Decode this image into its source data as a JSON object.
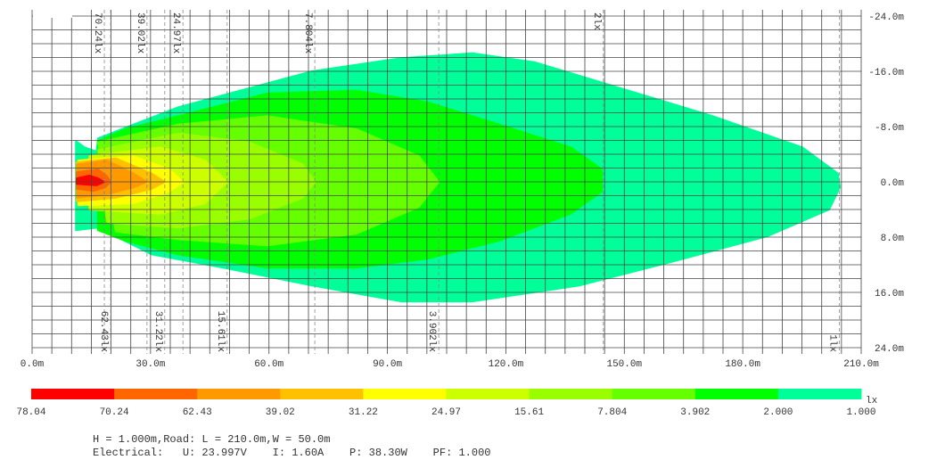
{
  "chart_data": {
    "type": "heatmap",
    "subtype": "isolux-contour",
    "x_unit": "m",
    "y_unit": "m",
    "xlim": [
      0,
      210
    ],
    "ylim": [
      -24,
      24
    ],
    "x_grid_step": 5,
    "y_grid_step": 2,
    "grid": true,
    "x_ticks": [
      {
        "value": 0,
        "label": "0.0m"
      },
      {
        "value": 30,
        "label": "30.0m"
      },
      {
        "value": 60,
        "label": "60.0m"
      },
      {
        "value": 90,
        "label": "90.0m"
      },
      {
        "value": 120,
        "label": "120.0m"
      },
      {
        "value": 150,
        "label": "150.0m"
      },
      {
        "value": 180,
        "label": "180.0m"
      },
      {
        "value": 210,
        "label": "210.0m"
      }
    ],
    "y_ticks": [
      {
        "value": -24,
        "label": "-24.0m"
      },
      {
        "value": -16,
        "label": "-16.0m"
      },
      {
        "value": -8,
        "label": "-8.0m"
      },
      {
        "value": 0,
        "label": "0.0m"
      },
      {
        "value": 8,
        "label": "8.0m"
      },
      {
        "value": 16,
        "label": "16.0m"
      },
      {
        "value": 24,
        "label": "24.0m"
      }
    ],
    "contour_markers_top": [
      {
        "x": 18.3,
        "label": "70.24lx"
      },
      {
        "x": 29.1,
        "label": "39.02lx"
      },
      {
        "x": 38.2,
        "label": "24.97lx"
      },
      {
        "x": 71.6,
        "label": "7.804lx"
      },
      {
        "x": 144.7,
        "label": "2lx"
      }
    ],
    "contour_markers_bottom": [
      {
        "x": 19.9,
        "label": "62.43lx"
      },
      {
        "x": 33.6,
        "label": "31.22lx"
      },
      {
        "x": 49.4,
        "label": "15.61lx"
      },
      {
        "x": 103.0,
        "label": "3.902lx"
      },
      {
        "x": 204.5,
        "label": "1lx"
      }
    ],
    "contours": [
      {
        "level": 1.0,
        "color": "#00ff99",
        "points": [
          [
            11.1,
            -5.9
          ],
          [
            13.3,
            -5.0
          ],
          [
            16.3,
            -4.4
          ],
          [
            16.7,
            -6.3
          ],
          [
            37.0,
            -10.8
          ],
          [
            70.9,
            -16.0
          ],
          [
            93.5,
            -17.9
          ],
          [
            111.5,
            -18.6
          ],
          [
            127.4,
            -17.3
          ],
          [
            149.9,
            -13.4
          ],
          [
            172.5,
            -9.5
          ],
          [
            195.1,
            -5.0
          ],
          [
            204.1,
            -1.2
          ],
          [
            204.6,
            0.8
          ],
          [
            201.9,
            4.0
          ],
          [
            186.1,
            7.9
          ],
          [
            161.2,
            11.7
          ],
          [
            138.6,
            15.0
          ],
          [
            111.5,
            17.3
          ],
          [
            93.5,
            17.3
          ],
          [
            70.9,
            15.0
          ],
          [
            48.3,
            12.4
          ],
          [
            30.3,
            10.5
          ],
          [
            21.2,
            7.9
          ],
          [
            16.7,
            6.6
          ],
          [
            11.1,
            7.0
          ]
        ]
      },
      {
        "level": 2.0,
        "color": "#00ff00",
        "points": [
          [
            16.7,
            -5.9
          ],
          [
            23.5,
            -7.6
          ],
          [
            37.0,
            -9.5
          ],
          [
            59.6,
            -12.8
          ],
          [
            82.2,
            -13.2
          ],
          [
            100.3,
            -11.5
          ],
          [
            118.3,
            -8.3
          ],
          [
            136.4,
            -5.0
          ],
          [
            144.3,
            -1.8
          ],
          [
            144.3,
            1.4
          ],
          [
            136.4,
            4.6
          ],
          [
            118.3,
            8.5
          ],
          [
            100.3,
            11.1
          ],
          [
            82.2,
            12.4
          ],
          [
            59.6,
            12.4
          ],
          [
            37.0,
            10.5
          ],
          [
            23.5,
            8.5
          ],
          [
            16.7,
            7.0
          ]
        ]
      },
      {
        "level": 3.902,
        "color": "#66ff00",
        "points": [
          [
            16.7,
            -5.7
          ],
          [
            37.0,
            -8.3
          ],
          [
            59.6,
            -9.5
          ],
          [
            82.2,
            -7.6
          ],
          [
            98.0,
            -3.7
          ],
          [
            103.0,
            0
          ],
          [
            98.0,
            3.6
          ],
          [
            82.2,
            7.5
          ],
          [
            59.6,
            9.2
          ],
          [
            37.0,
            8.3
          ],
          [
            21.2,
            7.2
          ]
        ]
      },
      {
        "level": 7.804,
        "color": "#99ff00",
        "points": [
          [
            16.7,
            -4.6
          ],
          [
            37.0,
            -7.0
          ],
          [
            55.1,
            -5.7
          ],
          [
            68.6,
            -2.5
          ],
          [
            71.6,
            0
          ],
          [
            68.6,
            2.3
          ],
          [
            55.1,
            5.3
          ],
          [
            37.0,
            6.6
          ],
          [
            19.0,
            5.9
          ]
        ]
      },
      {
        "level": 15.61,
        "color": "#ccff00",
        "points": [
          [
            14.5,
            -3.7
          ],
          [
            32.5,
            -5.0
          ],
          [
            43.8,
            -3.1
          ],
          [
            49.4,
            0
          ],
          [
            43.8,
            3.1
          ],
          [
            32.5,
            4.6
          ],
          [
            14.5,
            4.0
          ]
        ]
      },
      {
        "level": 24.97,
        "color": "#ffff00",
        "points": [
          [
            11.7,
            -3.1
          ],
          [
            25.7,
            -3.7
          ],
          [
            34.8,
            -1.8
          ],
          [
            38.2,
            0
          ],
          [
            34.8,
            1.4
          ],
          [
            25.7,
            3.1
          ],
          [
            11.7,
            3.4
          ]
        ]
      },
      {
        "level": 31.22,
        "color": "#ffc000",
        "points": [
          [
            11.3,
            -2.8
          ],
          [
            21.2,
            -3.4
          ],
          [
            30.3,
            -1.2
          ],
          [
            33.6,
            0
          ],
          [
            30.3,
            1.0
          ],
          [
            21.2,
            2.3
          ],
          [
            11.3,
            2.8
          ]
        ]
      },
      {
        "level": 39.02,
        "color": "#ff9900",
        "points": [
          [
            11.3,
            -2.5
          ],
          [
            19.0,
            -3.1
          ],
          [
            25.7,
            -1.2
          ],
          [
            29.1,
            0
          ],
          [
            25.7,
            0.8
          ],
          [
            19.0,
            1.8
          ],
          [
            11.3,
            2.3
          ]
        ]
      },
      {
        "level": 62.43,
        "color": "#ff6600",
        "points": [
          [
            11.3,
            -1.4
          ],
          [
            16.7,
            -1.8
          ],
          [
            19.0,
            -0.8
          ],
          [
            19.9,
            0
          ],
          [
            18.5,
            0.8
          ],
          [
            15.6,
            1.3
          ],
          [
            11.3,
            1.0
          ]
        ]
      },
      {
        "level": 70.24,
        "color": "#ff0000",
        "points": [
          [
            11.3,
            -0.5
          ],
          [
            14.5,
            -0.9
          ],
          [
            16.7,
            -0.5
          ],
          [
            18.3,
            0
          ],
          [
            16.3,
            0.5
          ],
          [
            11.3,
            0.3
          ]
        ]
      }
    ],
    "legend": {
      "unit": "lx",
      "colors": [
        "#ff0000",
        "#ff6600",
        "#ff9900",
        "#ffc000",
        "#ffff00",
        "#ccff00",
        "#99ff00",
        "#66ff00",
        "#00ff00",
        "#00ff99"
      ],
      "labels": [
        "78.04",
        "70.24",
        "62.43",
        "39.02",
        "31.22",
        "24.97",
        "15.61",
        "7.804",
        "3.902",
        "2.000",
        "1.000"
      ]
    }
  },
  "footer": {
    "line1": "H = 1.000m,Road: L = 210.0m,W = 50.0m",
    "line2": "Electrical:   U: 23.997V    I: 1.60A    P: 38.30W    PF: 1.000"
  }
}
